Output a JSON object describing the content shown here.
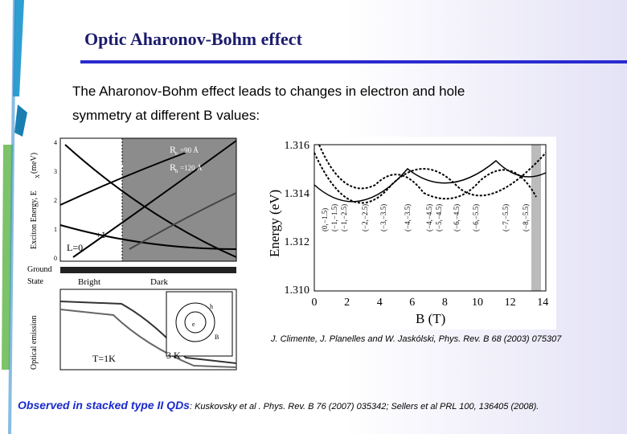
{
  "header": {
    "title": "Optic Aharonov-Bohm effect"
  },
  "body": {
    "lines": [
      "The Aharonov-Bohm effect leads to changes in electron and hole",
      "symmetry at different B values:"
    ]
  },
  "left_figure": {
    "y_label": "Exciton Energy, E",
    "y_label_sub": "X",
    "y_label_unit": " (meV)",
    "yticks": [
      "4",
      "3",
      "2",
      "1",
      "0"
    ],
    "curve_labels": [
      "+2",
      "-1",
      "+1",
      "L=0"
    ],
    "radii": [
      "R",
      "e",
      "=90 Å",
      "R",
      "h",
      "=120 Å"
    ],
    "ground": [
      "Ground",
      "State"
    ],
    "regions": [
      "Bright",
      "Dark"
    ],
    "lower_y_label": "Optical emission",
    "temps": [
      "T=1K",
      "3 K"
    ],
    "inset": [
      "e",
      "h",
      "B"
    ]
  },
  "right_figure": {
    "y_label": "Energy (eV)",
    "x_label": "B (T)",
    "yticks": [
      "1.316",
      "1.314",
      "1.312",
      "1.310"
    ],
    "xticks": [
      "0",
      "2",
      "4",
      "6",
      "8",
      "10",
      "12",
      "14"
    ],
    "states": [
      "(0,−1.5)",
      "(−1,−1.5)",
      "(−1,−2.5)",
      "(−2,−2.5)",
      "(−3,−3.5)",
      "(−4,−3.5)",
      "(−4,−4.5)",
      "(−5,−4.5)",
      "(−6,−4.5)",
      "(−6,−5.5)",
      "(−7,−5.5)",
      "(−8,−5.5)"
    ]
  },
  "citation": "J. Climente, J. Planelles and W. Jaskólski, Phys. Rev. B 68 (2003) 075307",
  "footer": {
    "highlight": "Observed  in stacked type II QDs",
    "text": ": Kuskovsky et al . Phys. Rev. B 76 (2007) 035342; Sellers et al PRL 100, 136405 (2008)."
  }
}
